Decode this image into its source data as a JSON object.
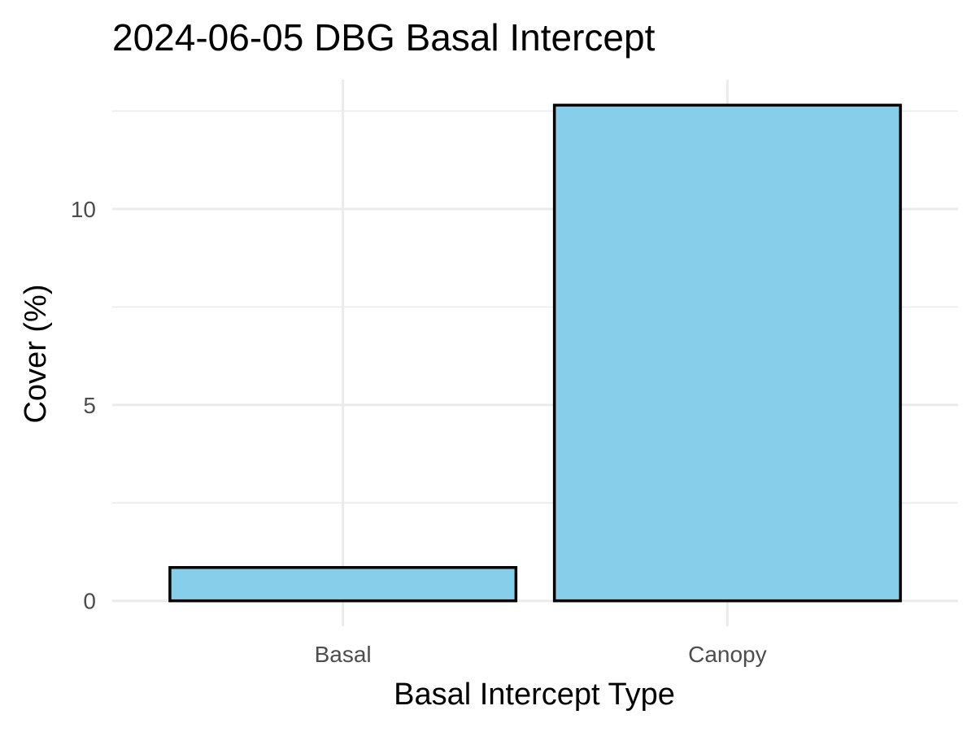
{
  "chart_data": {
    "type": "bar",
    "title": "2024-06-05 DBG Basal Intercept",
    "xlabel": "Basal Intercept Type",
    "ylabel": "Cover (%)",
    "categories": [
      "Basal",
      "Canopy"
    ],
    "values": [
      0.85,
      12.65
    ],
    "ylim": [
      -0.65,
      13.3
    ],
    "yticks": [
      0,
      5,
      10
    ],
    "ytick_labels": [
      "0",
      "5",
      "10"
    ],
    "grid": true,
    "legend": "none",
    "bar_fill": "#87CEEB",
    "bar_outline": "#000000"
  }
}
